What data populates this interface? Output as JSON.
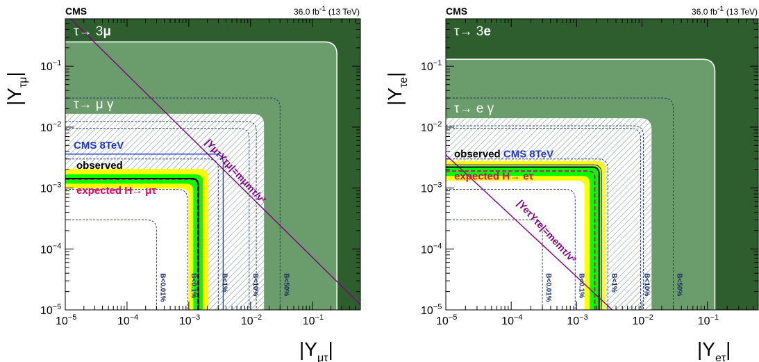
{
  "colors": {
    "excluded_3l": "#2e5e2e",
    "excluded_lg": "#6b9c6b",
    "allowed": "#ffffff",
    "hatch": "#6f9a86",
    "band_2sigma": "#ffff00",
    "band_1sigma": "#00ff00",
    "observed": "#000000",
    "expected": "#e0006a",
    "cms8": "#2233cc",
    "relation": "#800080",
    "contour": "#1a2a6c",
    "boundary_white": "#ffffff"
  },
  "chart_data": [
    {
      "type": "area",
      "panel": "mu-tau",
      "header": {
        "experiment": "CMS",
        "lumi_main": "36.0 fb",
        "lumi_sup": "-1",
        "lumi_tail": " (13 TeV)"
      },
      "xlabel": {
        "main": "|Y",
        "sub": "μτ",
        "close": "|"
      },
      "ylabel": {
        "main": "|Y",
        "sub": "τμ",
        "close": "|"
      },
      "xscale": "log",
      "yscale": "log",
      "xlim": [
        1e-05,
        0.6
      ],
      "ylim": [
        1e-05,
        0.6
      ],
      "x_ticks": [
        {
          "v": 1e-05,
          "base": "10",
          "exp": "−5"
        },
        {
          "v": 0.0001,
          "base": "10",
          "exp": "−4"
        },
        {
          "v": 0.001,
          "base": "10",
          "exp": "−3"
        },
        {
          "v": 0.01,
          "base": "10",
          "exp": "−2"
        },
        {
          "v": 0.1,
          "base": "10",
          "exp": "−1"
        }
      ],
      "y_ticks": [
        {
          "v": 1e-05,
          "base": "10",
          "exp": "−5"
        },
        {
          "v": 0.0001,
          "base": "10",
          "exp": "−4"
        },
        {
          "v": 0.001,
          "base": "10",
          "exp": "−3"
        },
        {
          "v": 0.01,
          "base": "10",
          "exp": "−2"
        },
        {
          "v": 0.1,
          "base": "10",
          "exp": "−1"
        }
      ],
      "region_3l": {
        "label_main": "τ→ 3",
        "label_bold": "μ",
        "limit": 0.25
      },
      "region_lg": {
        "label": "τ→ μ  γ",
        "limit": 0.0165,
        "hatched": true
      },
      "cms8": {
        "label": "CMS 8TeV",
        "limit": 0.0036
      },
      "observed": {
        "label": "observed",
        "limit": 0.00143
      },
      "expected": {
        "label": "expected H→ μτ",
        "limit": 0.0014,
        "sigma1": [
          0.00118,
          0.00168
        ],
        "sigma2": [
          0.00098,
          0.00205
        ]
      },
      "br_contours": [
        {
          "label": "B<0.01%",
          "limit": 0.0003
        },
        {
          "label": "B<0.1%",
          "limit": 0.00095
        },
        {
          "label": "B<1%",
          "limit": 0.003
        },
        {
          "label": "B<10%",
          "limit": 0.0095
        },
        {
          "label": "B<50%",
          "limit": 0.03
        }
      ],
      "relation": {
        "label": "|YμτYτμ|=mμmτ/v²",
        "product": 7.3e-06
      }
    },
    {
      "type": "area",
      "panel": "e-tau",
      "header": {
        "experiment": "CMS",
        "lumi_main": "36.0 fb",
        "lumi_sup": "-1",
        "lumi_tail": " (13 TeV)"
      },
      "xlabel": {
        "main": "|Y",
        "sub": "eτ",
        "close": "|"
      },
      "ylabel": {
        "main": "|Y",
        "sub": "τe",
        "close": "|"
      },
      "xscale": "log",
      "yscale": "log",
      "xlim": [
        1e-05,
        0.6
      ],
      "ylim": [
        1e-05,
        0.6
      ],
      "x_ticks": [
        {
          "v": 1e-05,
          "base": "10",
          "exp": "−5"
        },
        {
          "v": 0.0001,
          "base": "10",
          "exp": "−4"
        },
        {
          "v": 0.001,
          "base": "10",
          "exp": "−3"
        },
        {
          "v": 0.01,
          "base": "10",
          "exp": "−2"
        },
        {
          "v": 0.1,
          "base": "10",
          "exp": "−1"
        }
      ],
      "y_ticks": [
        {
          "v": 1e-05,
          "base": "10",
          "exp": "−5"
        },
        {
          "v": 0.0001,
          "base": "10",
          "exp": "−4"
        },
        {
          "v": 0.001,
          "base": "10",
          "exp": "−3"
        },
        {
          "v": 0.01,
          "base": "10",
          "exp": "−2"
        },
        {
          "v": 0.1,
          "base": "10",
          "exp": "−1"
        }
      ],
      "region_3l": {
        "label_main": "τ→ 3",
        "label_bold": "e",
        "limit": 0.13
      },
      "region_lg": {
        "label": "τ→ e  γ",
        "limit": 0.014,
        "hatched": true
      },
      "cms8": {
        "label": "CMS 8TeV",
        "limit": 0.0024
      },
      "observed": {
        "label": "observed",
        "limit": 0.0022
      },
      "expected": {
        "label": "expected H→ eτ",
        "limit": 0.0019,
        "sigma1": [
          0.00158,
          0.0023
        ],
        "sigma2": [
          0.00132,
          0.00275
        ]
      },
      "br_contours": [
        {
          "label": "B<0.01%",
          "limit": 0.0003
        },
        {
          "label": "B<0.1%",
          "limit": 0.00095
        },
        {
          "label": "B<1%",
          "limit": 0.003
        },
        {
          "label": "B<10%",
          "limit": 0.0095
        },
        {
          "label": "B<50%",
          "limit": 0.03
        }
      ],
      "relation": {
        "label": "|YeτYτe|=memτ/v²",
        "product": 3.5e-08
      }
    }
  ]
}
